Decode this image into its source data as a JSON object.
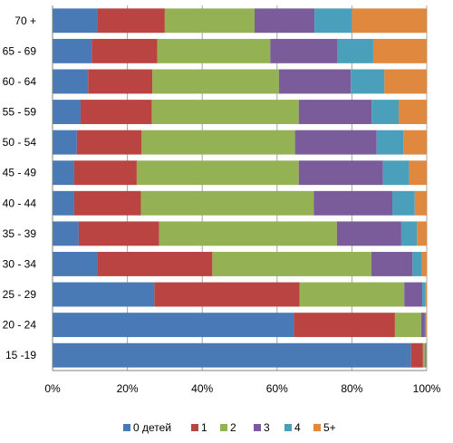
{
  "chart_data": {
    "type": "bar",
    "orientation": "horizontal",
    "stacked": "percent",
    "title": "",
    "xlabel": "",
    "ylabel": "",
    "xlim": [
      0,
      1
    ],
    "x_ticks": [
      "0%",
      "20%",
      "40%",
      "60%",
      "80%",
      "100%"
    ],
    "grid": "vertical",
    "legend_position": "bottom",
    "categories": [
      "70 +",
      "65 - 69",
      "60 - 64",
      "55 - 59",
      "50 - 54",
      "45 - 49",
      "40 - 44",
      "35 - 39",
      "30 - 34",
      "25 - 29",
      "20 - 24",
      "15 -19"
    ],
    "series": [
      {
        "name": "0 детей",
        "color": "#4a7ab5",
        "values": [
          0.12,
          0.105,
          0.095,
          0.075,
          0.065,
          0.058,
          0.058,
          0.07,
          0.12,
          0.272,
          0.645,
          0.958
        ]
      },
      {
        "name": "1",
        "color": "#b94441",
        "values": [
          0.18,
          0.175,
          0.172,
          0.19,
          0.173,
          0.167,
          0.178,
          0.215,
          0.307,
          0.388,
          0.27,
          0.032
        ]
      },
      {
        "name": "2",
        "color": "#94b254",
        "values": [
          0.24,
          0.302,
          0.338,
          0.393,
          0.41,
          0.433,
          0.462,
          0.475,
          0.425,
          0.28,
          0.07,
          0.005
        ]
      },
      {
        "name": "3",
        "color": "#7a5c9a",
        "values": [
          0.16,
          0.18,
          0.192,
          0.195,
          0.218,
          0.225,
          0.21,
          0.172,
          0.11,
          0.048,
          0.01,
          0.002
        ]
      },
      {
        "name": "4",
        "color": "#4aa0ba",
        "values": [
          0.1,
          0.095,
          0.09,
          0.072,
          0.072,
          0.07,
          0.06,
          0.042,
          0.025,
          0.009,
          0.003,
          0.002
        ]
      },
      {
        "name": "5+",
        "color": "#e0883d",
        "values": [
          0.2,
          0.143,
          0.113,
          0.075,
          0.062,
          0.047,
          0.032,
          0.026,
          0.013,
          0.003,
          0.002,
          0.001
        ]
      }
    ]
  }
}
